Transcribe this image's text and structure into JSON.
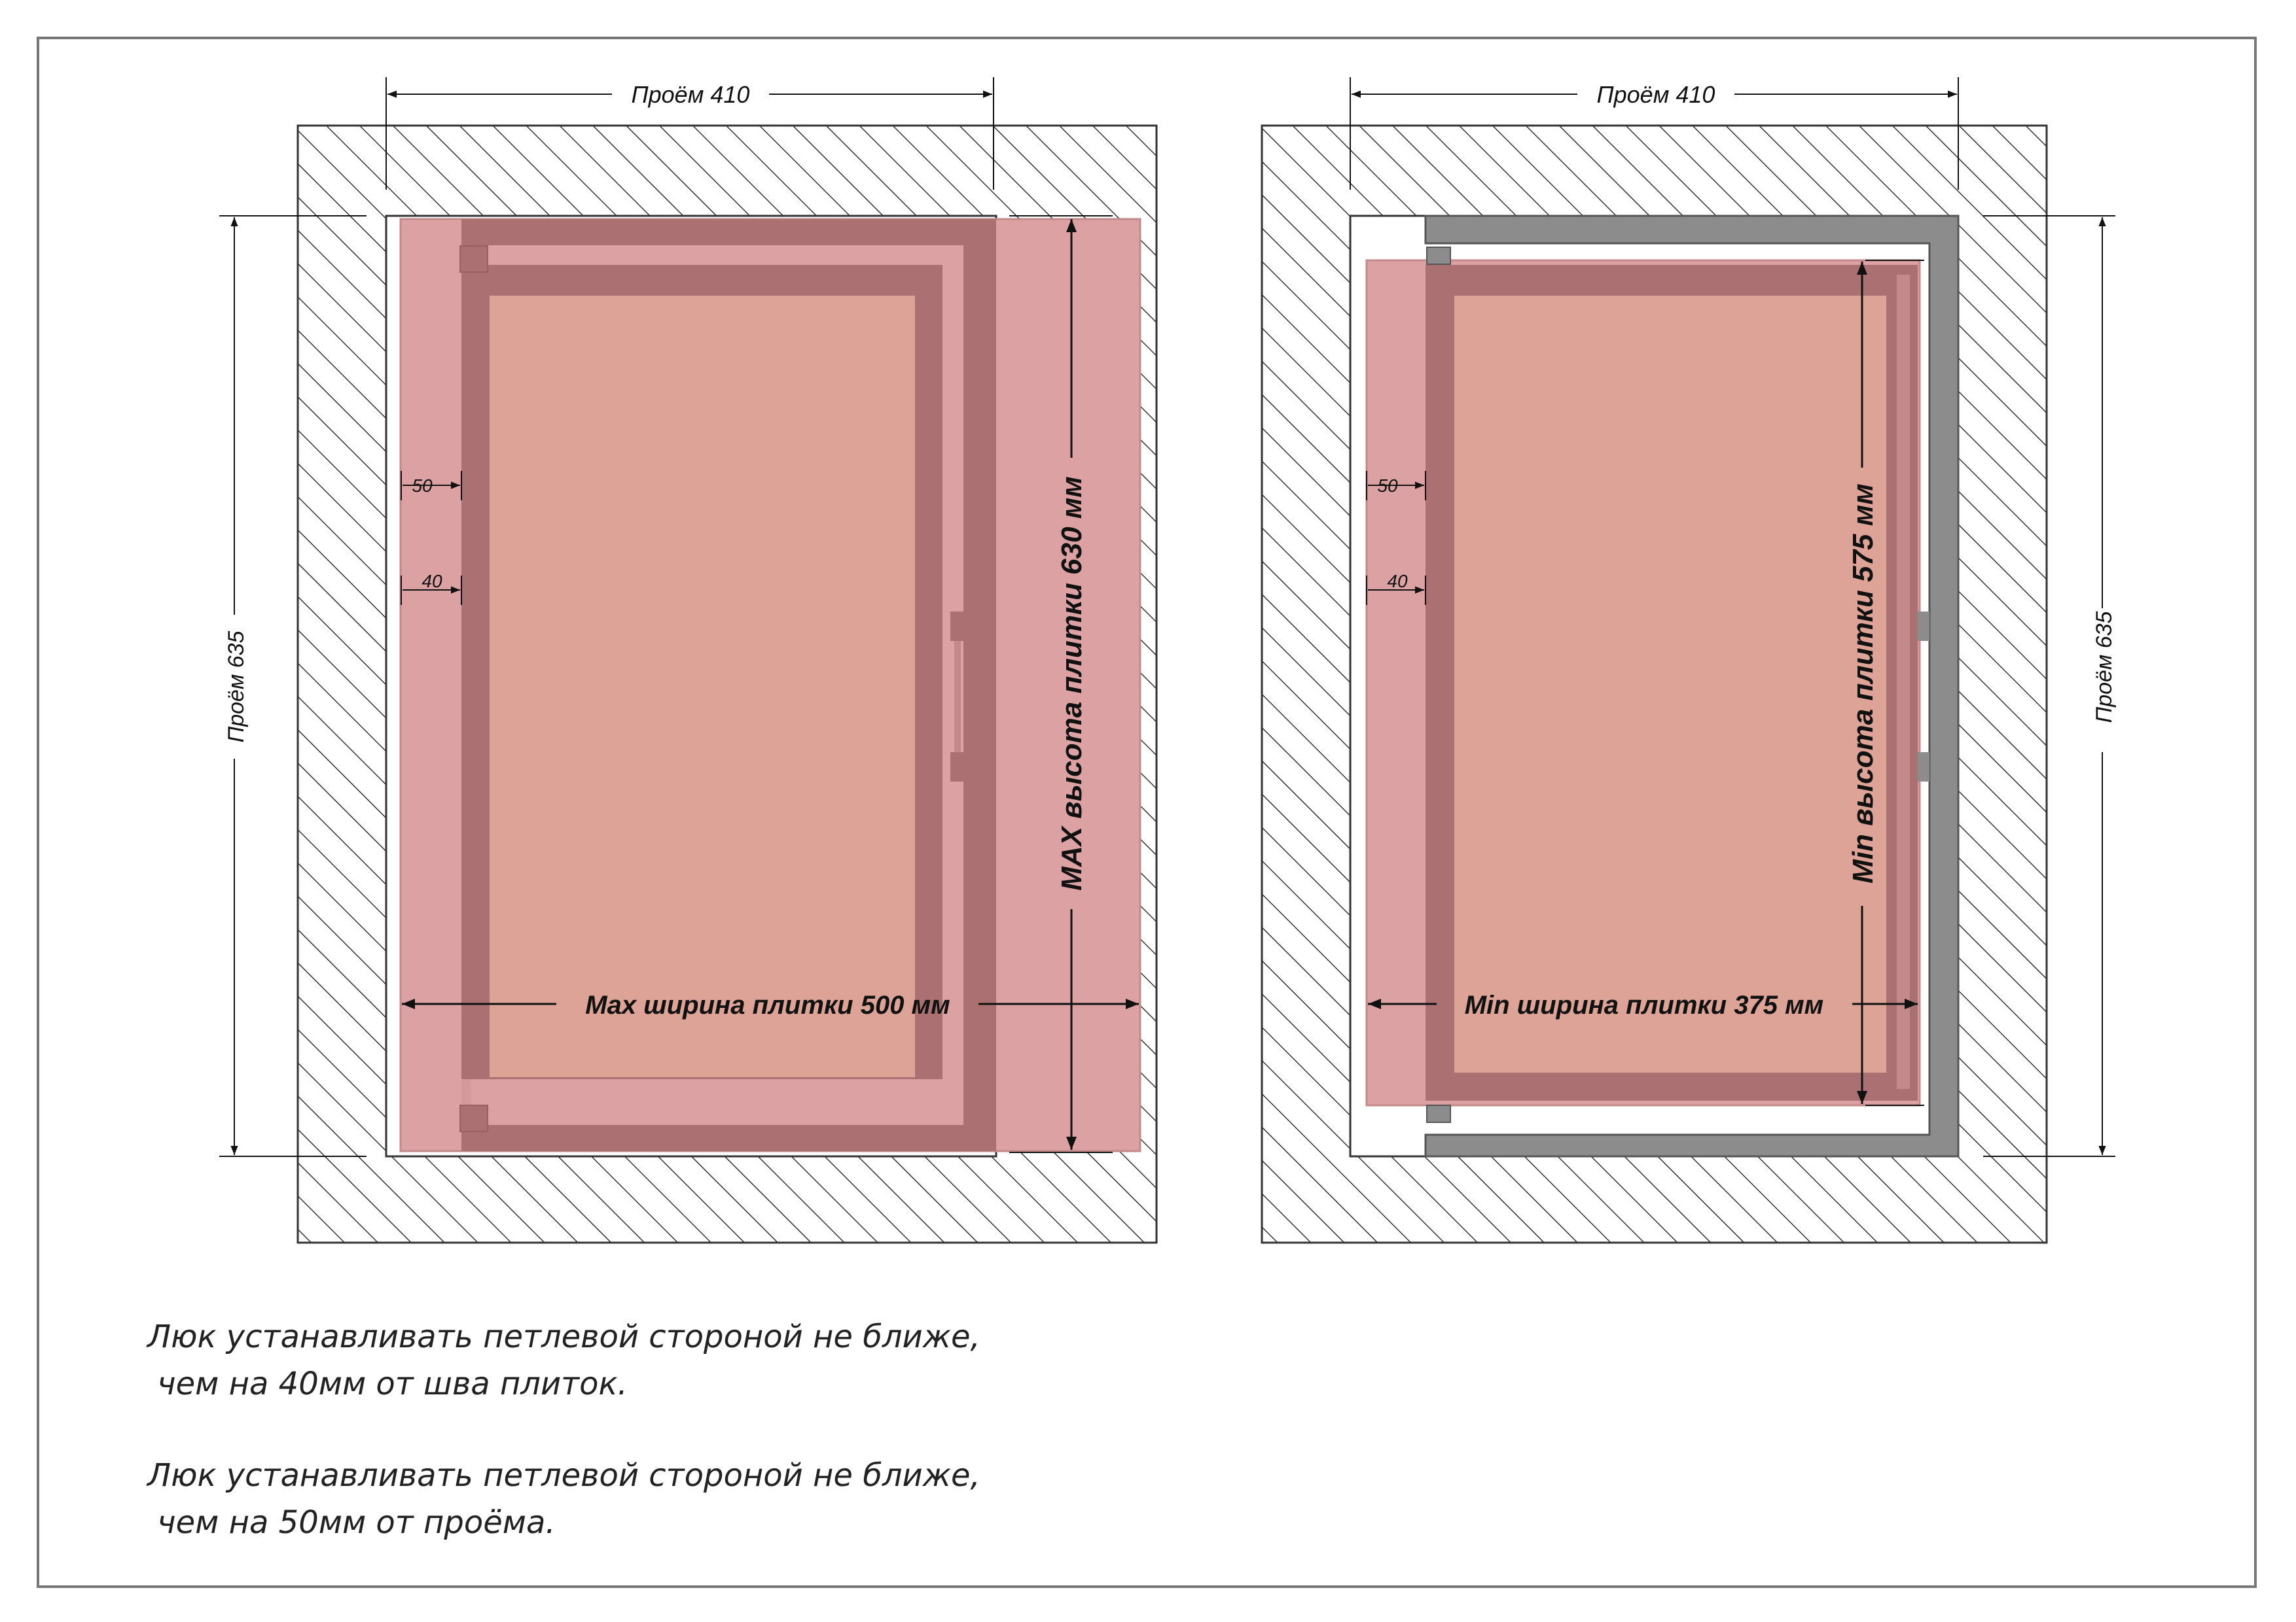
{
  "left_panel": {
    "opening_width": "Проём 410",
    "opening_height": "Проём 635",
    "offset_50": "50",
    "offset_40": "40",
    "tile_width_label": "Max ширина плитки 500 мм",
    "tile_height_label": "MAX высота плитки 630 мм"
  },
  "right_panel": {
    "opening_width": "Проём 410",
    "opening_height": "Проём 635",
    "offset_50": "50",
    "offset_40": "40",
    "tile_width_label": "Min ширина плитки 375 мм",
    "tile_height_label": "Min высота плитки 575 мм"
  },
  "notes": [
    {
      "line1": "Люк устанавливать петлевой стороной не ближе,",
      "line2": " чем на 40мм от шва плиток."
    },
    {
      "line1": "Люк устанавливать петлевой стороной не ближе,",
      "line2": " чем на 50мм от проёма."
    }
  ],
  "colors": {
    "tile": "#dca2a3",
    "tile_edge": "#c48a8b",
    "frame": "#ab7071",
    "panel": "#dca396",
    "metal_frame": "#8c8c8c",
    "hatch": "#333333",
    "border": "#777777"
  }
}
